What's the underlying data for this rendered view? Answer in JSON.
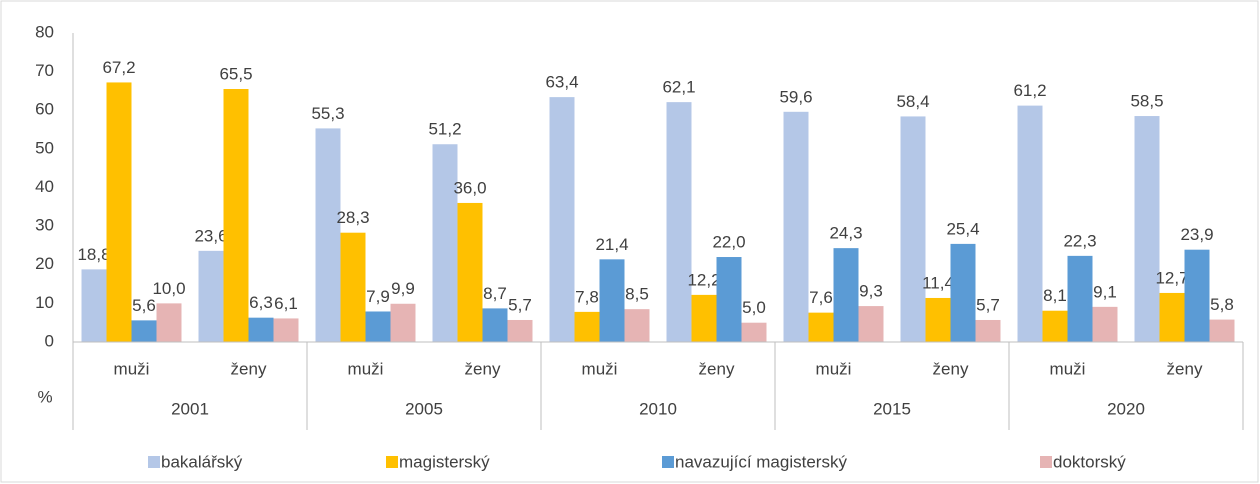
{
  "chart_data": {
    "type": "bar",
    "y_label": "%",
    "categories": [
      "muži",
      "ženy",
      "muži",
      "ženy",
      "muži",
      "ženy",
      "muži",
      "ženy",
      "muži",
      "ženy"
    ],
    "groups": [
      "2001",
      "2005",
      "2010",
      "2015",
      "2020"
    ],
    "series": [
      {
        "name": "bakalářský",
        "color": "#b4c7e7",
        "values": [
          18.8,
          23.6,
          55.3,
          51.2,
          63.4,
          62.1,
          59.6,
          58.4,
          61.2,
          58.5
        ],
        "value_labels": [
          "18,8",
          "23,6",
          "55,3",
          "51,2",
          "63,4",
          "62,1",
          "59,6",
          "58,4",
          "61,2",
          "58,5"
        ]
      },
      {
        "name": "magisterský",
        "color": "#ffc000",
        "values": [
          67.2,
          65.5,
          28.3,
          36.0,
          7.8,
          12.2,
          7.6,
          11.4,
          8.1,
          12.7
        ],
        "value_labels": [
          "67,2",
          "65,5",
          "28,3",
          "36,0",
          "7,8",
          "12,2",
          "7,6",
          "11,4",
          "8,1",
          "12,7"
        ]
      },
      {
        "name": "navazující magisterský",
        "color": "#5b9bd5",
        "values": [
          5.6,
          6.3,
          7.9,
          8.7,
          21.4,
          22.0,
          24.3,
          25.4,
          22.3,
          23.9
        ],
        "value_labels": [
          "5,6",
          "6,3",
          "7,9",
          "8,7",
          "21,4",
          "22,0",
          "24,3",
          "25,4",
          "22,3",
          "23,9"
        ]
      },
      {
        "name": "doktorský",
        "color": "#e6b4b4",
        "values": [
          10.0,
          6.1,
          9.9,
          5.7,
          8.5,
          5.0,
          9.3,
          5.7,
          9.1,
          5.8
        ],
        "value_labels": [
          "10,0",
          "6,1",
          "9,9",
          "5,7",
          "8,5",
          "5,0",
          "9,3",
          "5,7",
          "9,1",
          "5,8"
        ]
      }
    ],
    "ylim": [
      0,
      80
    ],
    "yticks": [
      0,
      10,
      20,
      30,
      40,
      50,
      60,
      70,
      80
    ],
    "grid": false
  }
}
